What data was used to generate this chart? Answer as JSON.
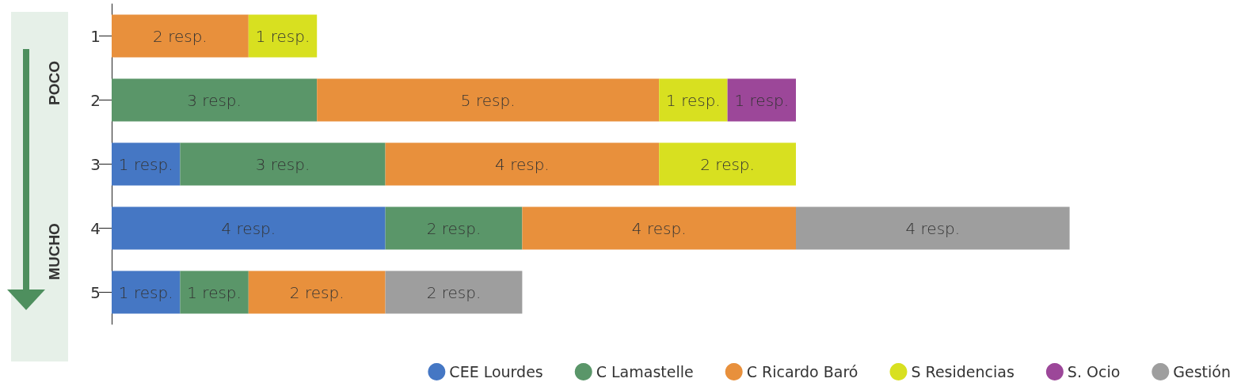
{
  "chart_data": {
    "type": "bar",
    "orientation": "horizontal",
    "stacked": true,
    "categories": [
      "1",
      "2",
      "3",
      "4",
      "5"
    ],
    "series": [
      {
        "name": "CEE Lourdes",
        "color": "#4577c4",
        "values": [
          null,
          null,
          1,
          4,
          1
        ],
        "value_labels": [
          null,
          null,
          "1 resp.",
          "4 resp.",
          "1 resp."
        ]
      },
      {
        "name": "C Lamastelle",
        "color": "#5a9669",
        "values": [
          null,
          3,
          3,
          2,
          1
        ],
        "value_labels": [
          null,
          "3 resp.",
          "3 resp.",
          "2 resp.",
          "1 resp."
        ]
      },
      {
        "name": "C Ricardo Baró",
        "color": "#e8903c",
        "values": [
          2,
          5,
          4,
          4,
          2
        ],
        "value_labels": [
          "2 resp.",
          "5 resp.",
          "4 resp.",
          "4 resp.",
          "2 resp."
        ]
      },
      {
        "name": "S Residencias",
        "color": "#d8e020",
        "values": [
          1,
          1,
          2,
          null,
          null
        ],
        "value_labels": [
          "1 resp.",
          "1 resp.",
          "2 resp.",
          null,
          null
        ]
      },
      {
        "name": "S. Ocio",
        "color": "#9c4799",
        "values": [
          null,
          1,
          null,
          null,
          null
        ],
        "value_labels": [
          null,
          "1 resp.",
          null,
          null,
          null
        ]
      },
      {
        "name": "Gestión",
        "color": "#9e9e9e",
        "values": [
          null,
          null,
          null,
          4,
          2
        ],
        "value_labels": [
          null,
          null,
          null,
          "4 resp.",
          "2 resp."
        ]
      }
    ],
    "annotations": [
      "POCO",
      "MUCHO"
    ],
    "legend": "bottom right",
    "tick_labels": "y"
  }
}
